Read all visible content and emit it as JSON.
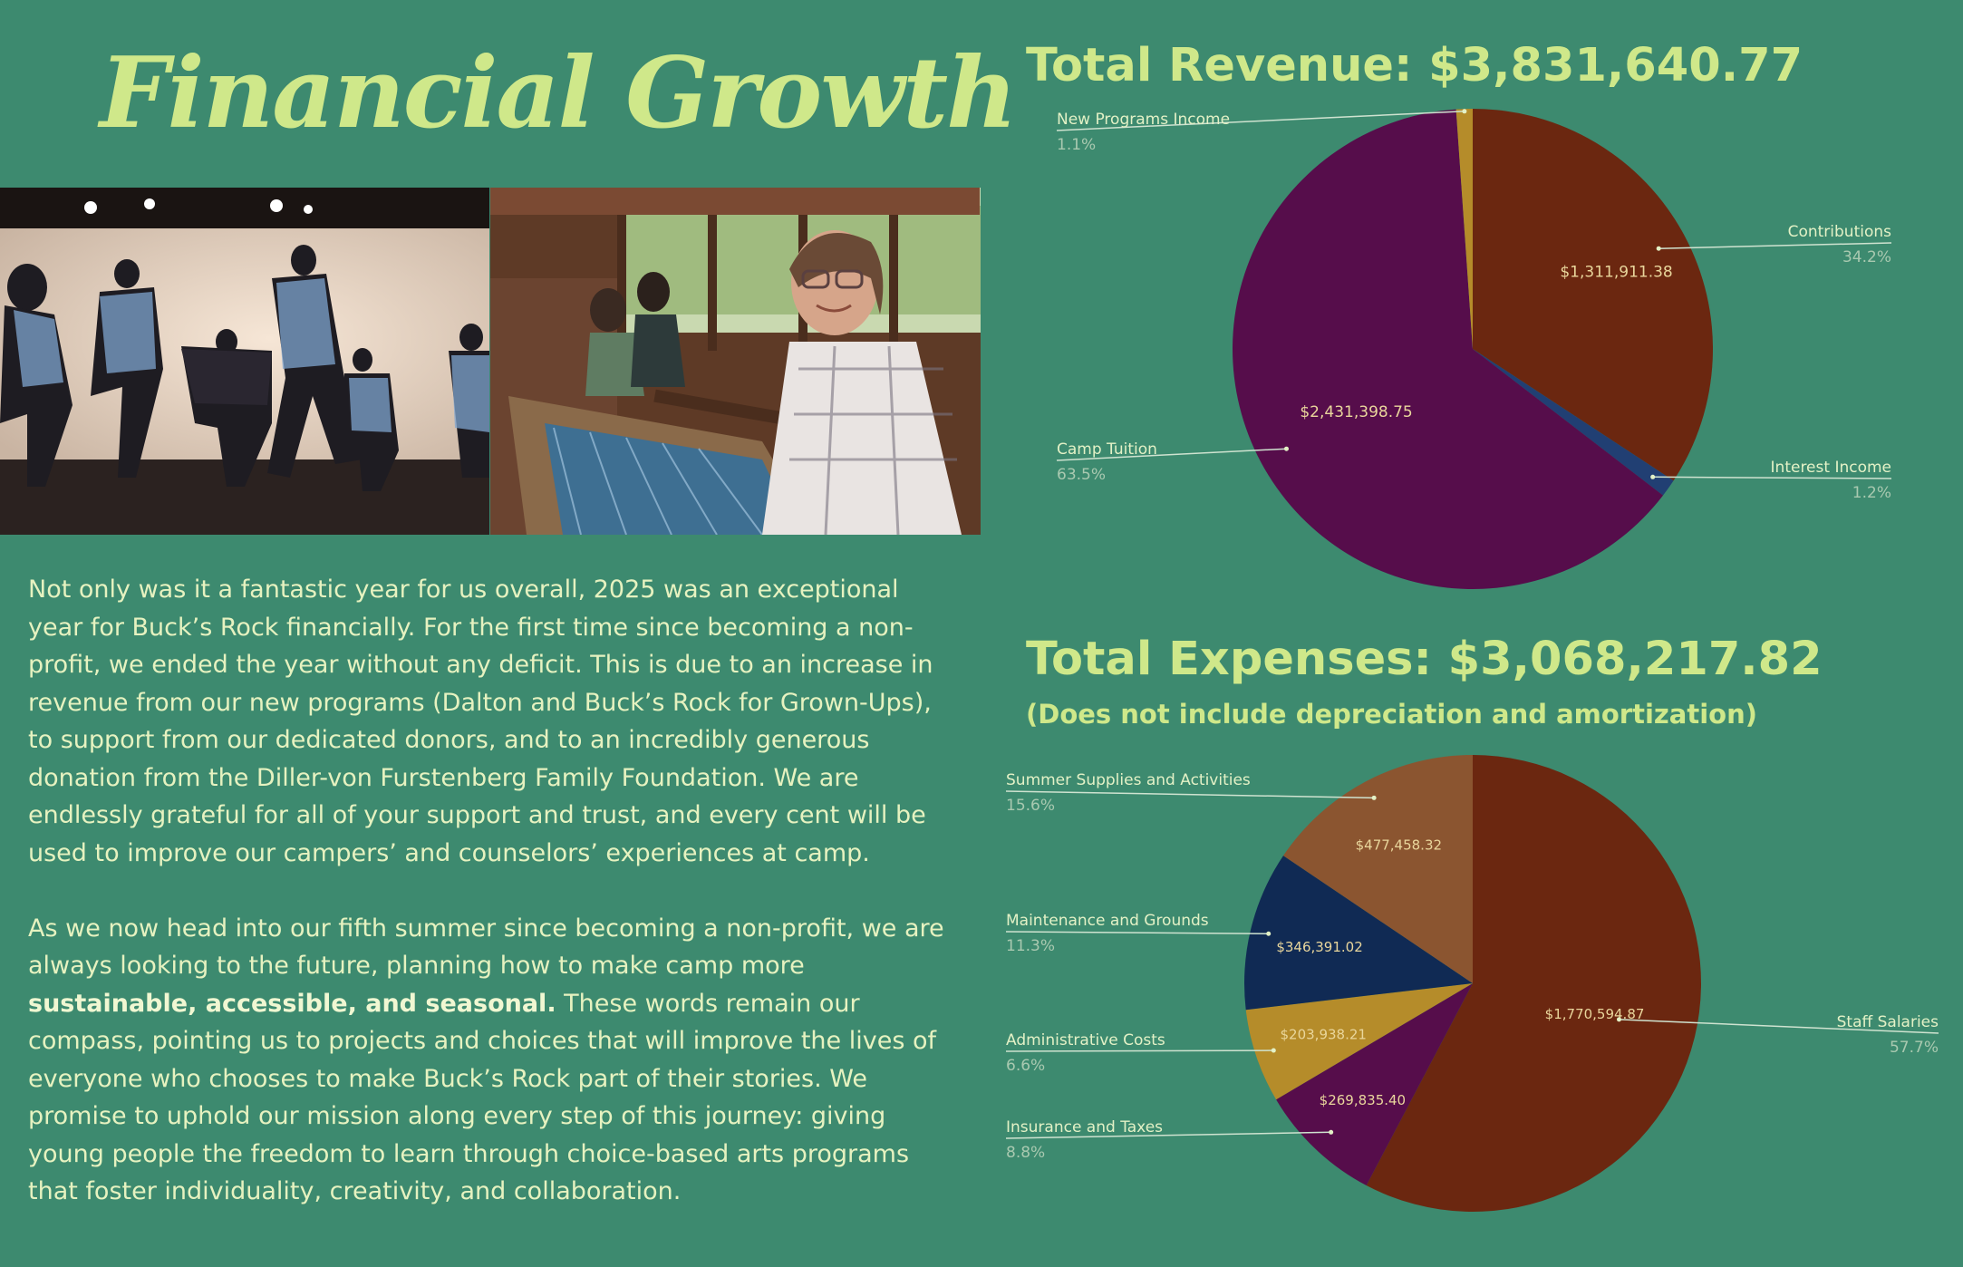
{
  "page": {
    "title": "Financial Growth",
    "paragraph_1": "Not only was it a fantastic year for us overall, 2025 was an exceptional year for Buck’s Rock financially. For the first time since becoming a non-profit, we ended the year without any deficit. This is due to an increase in revenue from our new programs (Dalton and Buck’s Rock for Grown-Ups), to support from our dedicated donors, and to an incredibly generous donation from the Diller-von Furstenberg Family Foundation. We are endlessly grateful for all of your support and trust, and every cent will be used to improve our campers’ and counselors’ experiences at camp.",
    "paragraph_2_start": "As we now head into our fifth summer since becoming a non-profit, we are always looking to the future, planning how to make camp more ",
    "paragraph_2_bold": "sustainable, accessible, and seasonal.",
    "paragraph_2_end": " These words remain our compass, pointing us to projects and choices that will improve the lives of everyone who chooses to make Buck’s Rock part of their stories. We promise to uphold our mission along every step of this journey: giving young people the freedom to learn through choice-based arts programs that foster individuality, creativity, and collaboration."
  },
  "colors": {
    "background": "#3d8a6f",
    "title": "#cfe88a",
    "body_text": "#e6f2c0"
  },
  "chart_data": [
    {
      "type": "pie",
      "title": "Total Revenue: $3,831,640.77",
      "slices": [
        {
          "label": "Contributions",
          "value": 1311911.38,
          "value_label": "$1,311,911.38",
          "percent_label": "34.2%",
          "color": "#6b2710"
        },
        {
          "label": "Interest Income",
          "value": 45979.69,
          "value_label": "",
          "percent_label": "1.2%",
          "color": "#213f73"
        },
        {
          "label": "Camp Tuition",
          "value": 2431398.75,
          "value_label": "$2,431,398.75",
          "percent_label": "63.5%",
          "color": "#560d4b"
        },
        {
          "label": "New Programs Income",
          "value": 42350.95,
          "value_label": "",
          "percent_label": "1.1%",
          "color": "#b58c2a"
        }
      ]
    },
    {
      "type": "pie",
      "title": "Total Expenses: $3,068,217.82",
      "subtitle": "(Does not include depreciation and amortization)",
      "slices": [
        {
          "label": "Staff Salaries",
          "value": 1770594.87,
          "value_label": "$1,770,594.87",
          "percent_label": "57.7%",
          "color": "#6b2710"
        },
        {
          "label": "Insurance and Taxes",
          "value": 269835.4,
          "value_label": "$269,835.40",
          "percent_label": "8.8%",
          "color": "#560d4b"
        },
        {
          "label": "Administrative Costs",
          "value": 203938.21,
          "value_label": "$203,938.21",
          "percent_label": "6.6%",
          "color": "#b58c2a"
        },
        {
          "label": "Maintenance and Grounds",
          "value": 346391.02,
          "value_label": "$346,391.02",
          "percent_label": "11.3%",
          "color": "#102a54"
        },
        {
          "label": "Summer Supplies and Activities",
          "value": 477458.32,
          "value_label": "$477,458.32",
          "percent_label": "15.6%",
          "color": "#8b5530"
        }
      ]
    }
  ]
}
